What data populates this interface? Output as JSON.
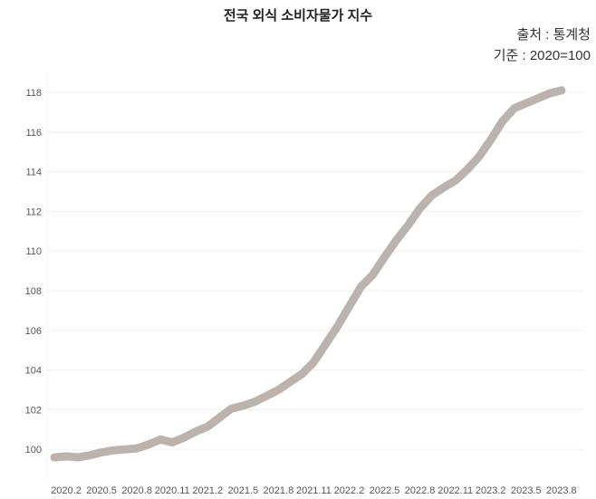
{
  "chart_data": {
    "type": "line",
    "title": "전국 외식 소비자물가 지수",
    "annotations": [
      "출처 : 통계청",
      "기준 : 2020=100"
    ],
    "xlabel": "",
    "ylabel": "",
    "ylim": [
      99,
      119
    ],
    "yticks": [
      100,
      102,
      104,
      106,
      108,
      110,
      112,
      114,
      116,
      118
    ],
    "xtick_labels": [
      "2020.2",
      "2020.5",
      "2020.8",
      "2020.11",
      "2021.2",
      "2021.5",
      "2021.8",
      "2021.11",
      "2022.2",
      "2022.5",
      "2022.8",
      "2022.11",
      "2023.2",
      "2023.5",
      "2023.8"
    ],
    "grid": "horizontal",
    "line_color": "#bab3ae",
    "x": [
      "2020.1",
      "2020.2",
      "2020.3",
      "2020.4",
      "2020.5",
      "2020.6",
      "2020.7",
      "2020.8",
      "2020.9",
      "2020.10",
      "2020.11",
      "2020.12",
      "2021.1",
      "2021.2",
      "2021.3",
      "2021.4",
      "2021.5",
      "2021.6",
      "2021.7",
      "2021.8",
      "2021.9",
      "2021.10",
      "2021.11",
      "2021.12",
      "2022.1",
      "2022.2",
      "2022.3",
      "2022.4",
      "2022.5",
      "2022.6",
      "2022.7",
      "2022.8",
      "2022.9",
      "2022.10",
      "2022.11",
      "2022.12",
      "2023.1",
      "2023.2",
      "2023.3",
      "2023.4",
      "2023.5",
      "2023.6",
      "2023.7",
      "2023.8"
    ],
    "values": [
      99.6,
      99.65,
      99.6,
      99.7,
      99.85,
      99.95,
      100.0,
      100.05,
      100.25,
      100.5,
      100.35,
      100.6,
      100.9,
      101.15,
      101.6,
      102.05,
      102.2,
      102.4,
      102.7,
      103.0,
      103.4,
      103.8,
      104.4,
      105.3,
      106.2,
      107.2,
      108.2,
      108.8,
      109.7,
      110.55,
      111.3,
      112.15,
      112.8,
      113.2,
      113.55,
      114.1,
      114.75,
      115.6,
      116.55,
      117.2,
      117.45,
      117.7,
      117.95,
      118.1
    ]
  }
}
